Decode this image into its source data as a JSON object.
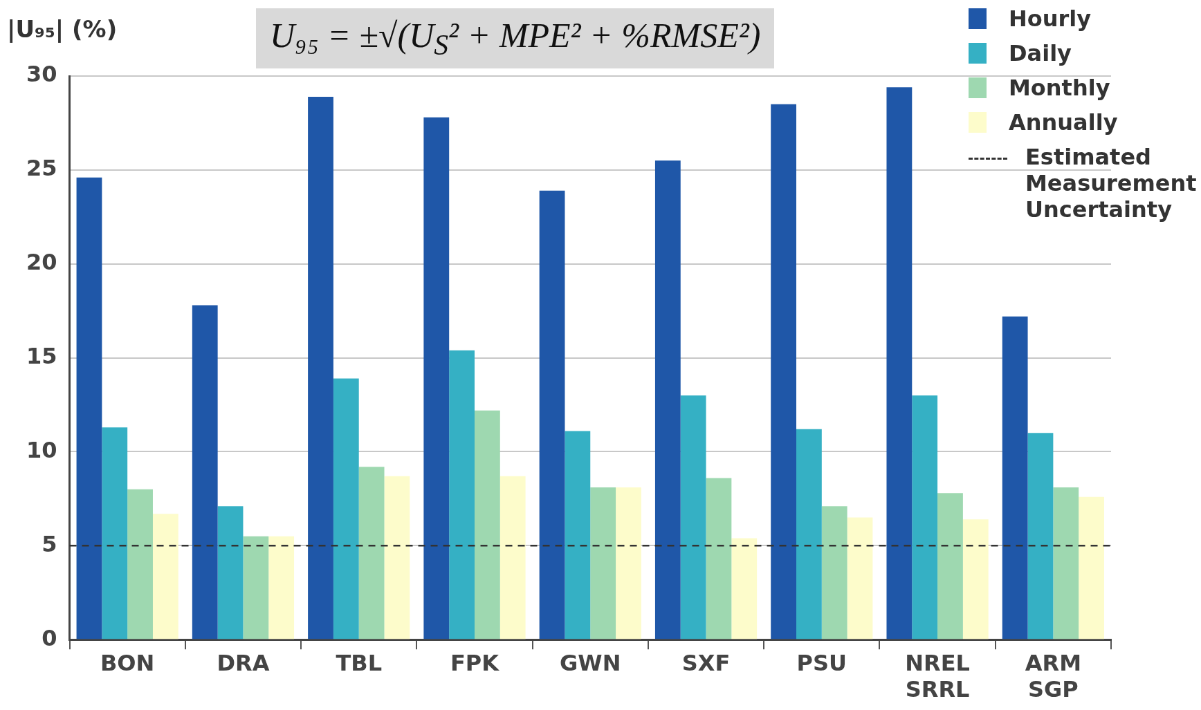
{
  "chart_data": {
    "type": "bar",
    "ylabel": "|U₉₅| (%)",
    "annotations": [
      "U₉₅ = ±√(U$_{S}$² + MPE² + %RMSE²)"
    ],
    "categories": [
      "BON",
      "DRA",
      "TBL",
      "FPK",
      "GWN",
      "SXF",
      "PSU",
      "NREL\nSRRL",
      "ARM\nSGP"
    ],
    "series": [
      {
        "name": "Hourly",
        "color": "#1f57a8",
        "values": [
          24.6,
          17.8,
          28.9,
          27.8,
          23.9,
          25.5,
          28.5,
          29.4,
          17.2
        ]
      },
      {
        "name": "Daily",
        "color": "#35b0c4",
        "values": [
          11.3,
          7.1,
          13.9,
          15.4,
          11.1,
          13.0,
          11.2,
          13.0,
          11.0
        ]
      },
      {
        "name": "Monthly",
        "color": "#9ed8b0",
        "values": [
          8.0,
          5.5,
          9.2,
          12.2,
          8.1,
          8.6,
          7.1,
          7.8,
          8.1
        ]
      },
      {
        "name": "Annually",
        "color": "#fdfccb",
        "values": [
          6.7,
          5.5,
          8.7,
          8.7,
          8.1,
          5.4,
          6.5,
          6.4,
          7.6
        ]
      }
    ],
    "ylim": [
      0,
      30
    ],
    "yticks": [
      0,
      5,
      10,
      15,
      20,
      25,
      30
    ],
    "grid": "y",
    "legend": "top right",
    "ref_lines": [
      {
        "axis": "y",
        "value": 5,
        "label": "Estimated\nMeasurement\nUncertainty",
        "color": "#333333",
        "line_style": "dashed"
      }
    ]
  }
}
